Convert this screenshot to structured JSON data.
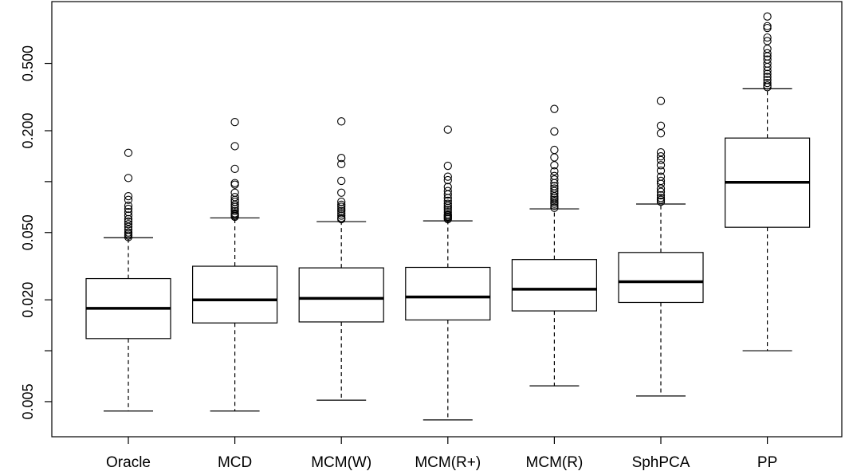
{
  "chart_data": {
    "type": "boxplot",
    "title": "",
    "xlabel": "",
    "ylabel": "",
    "y_scale": "log",
    "ylim": [
      0.0031,
      1.16
    ],
    "y_ticks": [
      0.005,
      0.02,
      0.05,
      0.2,
      0.5
    ],
    "y_tick_labels": [
      "0.005",
      "0.020",
      "0.050",
      "0.200",
      "0.500"
    ],
    "y_minor_ticks": [
      0.01,
      0.1
    ],
    "categories": [
      "Oracle",
      "MCD",
      "MCM(W)",
      "MCM(R+)",
      "MCM(R)",
      "SphPCA",
      "PP"
    ],
    "boxes": [
      {
        "whisker_low": 0.0044,
        "q1": 0.0118,
        "median": 0.0178,
        "q3": 0.0267,
        "whisker_high": 0.0466,
        "outliers": [
          0.148,
          0.105,
          0.082,
          0.078,
          0.072,
          0.069,
          0.066,
          0.063,
          0.06,
          0.058,
          0.056,
          0.054,
          0.052,
          0.05,
          0.049,
          0.048,
          0.047
        ]
      },
      {
        "whisker_low": 0.0044,
        "q1": 0.0146,
        "median": 0.02,
        "q3": 0.0316,
        "whisker_high": 0.061,
        "outliers": [
          0.225,
          0.162,
          0.119,
          0.098,
          0.096,
          0.086,
          0.081,
          0.078,
          0.076,
          0.073,
          0.071,
          0.069,
          0.067,
          0.065,
          0.064,
          0.063,
          0.062
        ]
      },
      {
        "whisker_low": 0.0051,
        "q1": 0.0148,
        "median": 0.0204,
        "q3": 0.0309,
        "whisker_high": 0.058,
        "outliers": [
          0.227,
          0.138,
          0.127,
          0.101,
          0.086,
          0.076,
          0.073,
          0.071,
          0.069,
          0.067,
          0.065,
          0.063,
          0.061,
          0.06
        ]
      },
      {
        "whisker_low": 0.0039,
        "q1": 0.0152,
        "median": 0.0208,
        "q3": 0.0311,
        "whisker_high": 0.0586,
        "outliers": [
          0.203,
          0.124,
          0.107,
          0.102,
          0.093,
          0.088,
          0.084,
          0.08,
          0.077,
          0.074,
          0.072,
          0.07,
          0.068,
          0.066,
          0.064,
          0.063,
          0.062,
          0.061,
          0.06
        ]
      },
      {
        "whisker_low": 0.0062,
        "q1": 0.0172,
        "median": 0.0231,
        "q3": 0.0346,
        "whisker_high": 0.069,
        "outliers": [
          0.269,
          0.198,
          0.154,
          0.139,
          0.125,
          0.115,
          0.108,
          0.103,
          0.098,
          0.094,
          0.091,
          0.088,
          0.085,
          0.082,
          0.08,
          0.078,
          0.076,
          0.074,
          0.072,
          0.07
        ]
      },
      {
        "whisker_low": 0.0054,
        "q1": 0.0193,
        "median": 0.0256,
        "q3": 0.0381,
        "whisker_high": 0.0737,
        "outliers": [
          0.3,
          0.214,
          0.193,
          0.149,
          0.141,
          0.134,
          0.125,
          0.116,
          0.107,
          0.101,
          0.097,
          0.091,
          0.087,
          0.083,
          0.08,
          0.078,
          0.076
        ]
      },
      {
        "whisker_low": 0.01,
        "q1": 0.0537,
        "median": 0.099,
        "q3": 0.181,
        "whisker_high": 0.354,
        "outliers": [
          0.947,
          0.83,
          0.81,
          0.711,
          0.678,
          0.61,
          0.574,
          0.55,
          0.527,
          0.499,
          0.476,
          0.453,
          0.434,
          0.416,
          0.399,
          0.383,
          0.37,
          0.362
        ]
      }
    ]
  }
}
